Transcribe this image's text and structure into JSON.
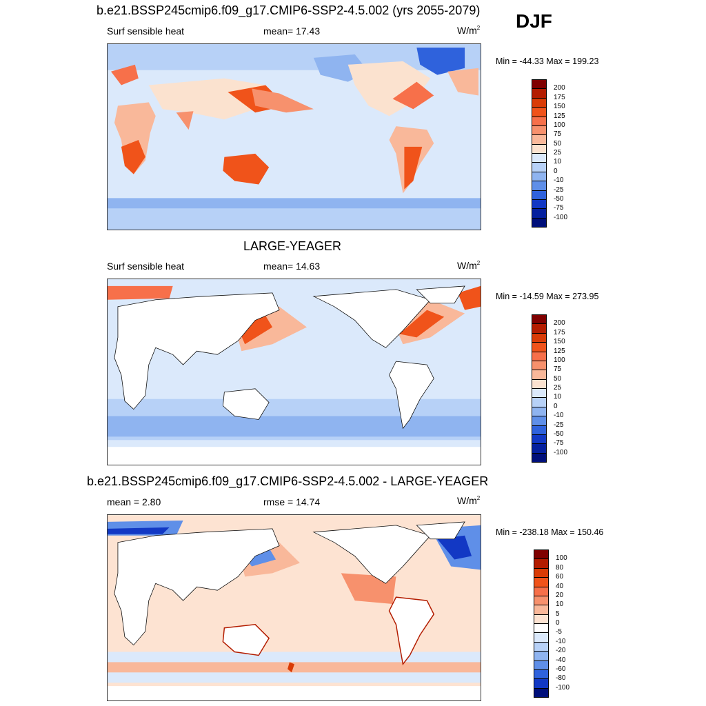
{
  "season": "DJF",
  "panels": [
    {
      "title": "b.e21.BSSP245cmip6.f09_g17.CMIP6-SSP2-4.5.002 (yrs 2055-2079)",
      "left": "Surf sensible heat",
      "center": "mean=  17.43",
      "units_base": "W/m",
      "units_exp": "2",
      "minmax": "Min = -44.33 Max = 199.23",
      "map_kind": "model"
    },
    {
      "title": "LARGE-YEAGER",
      "left": "Surf sensible heat",
      "center": "mean=  14.63",
      "units_base": "W/m",
      "units_exp": "2",
      "minmax": "Min = -14.59 Max = 273.95",
      "map_kind": "obs"
    },
    {
      "title": "b.e21.BSSP245cmip6.f09_g17.CMIP6-SSP2-4.5.002 - LARGE-YEAGER",
      "left": "mean =   2.80",
      "center": "rmse =  14.74",
      "units_base": "W/m",
      "units_exp": "2",
      "minmax": "Min = -238.18 Max = 150.46",
      "map_kind": "diff"
    }
  ],
  "colorbars": {
    "abs": {
      "labels": [
        "200",
        "175",
        "150",
        "125",
        "100",
        "75",
        "50",
        "25",
        "10",
        "0",
        "-10",
        "-25",
        "-50",
        "-75",
        "-100"
      ],
      "colors": [
        "#7f0000",
        "#b31c00",
        "#d93b06",
        "#f0531a",
        "#f7704a",
        "#f7916d",
        "#f9b89a",
        "#fbe2cf",
        "#dbe9fb",
        "#b7d1f7",
        "#8fb4f0",
        "#5f8fe8",
        "#2f62dc",
        "#1238c4",
        "#05209e",
        "#000f7a"
      ]
    },
    "diff": {
      "labels": [
        "100",
        "80",
        "60",
        "40",
        "20",
        "10",
        "5",
        "0",
        "-5",
        "-10",
        "-20",
        "-40",
        "-60",
        "-80",
        "-100"
      ],
      "colors": [
        "#7f0000",
        "#b31c00",
        "#d93b06",
        "#f0531a",
        "#f7704a",
        "#f7916d",
        "#f9b89a",
        "#fde3d2",
        "#ffffff",
        "#dbe9fb",
        "#b7d1f7",
        "#8fb4f0",
        "#5f8fe8",
        "#2f62dc",
        "#1238c4",
        "#000f7a"
      ]
    }
  }
}
